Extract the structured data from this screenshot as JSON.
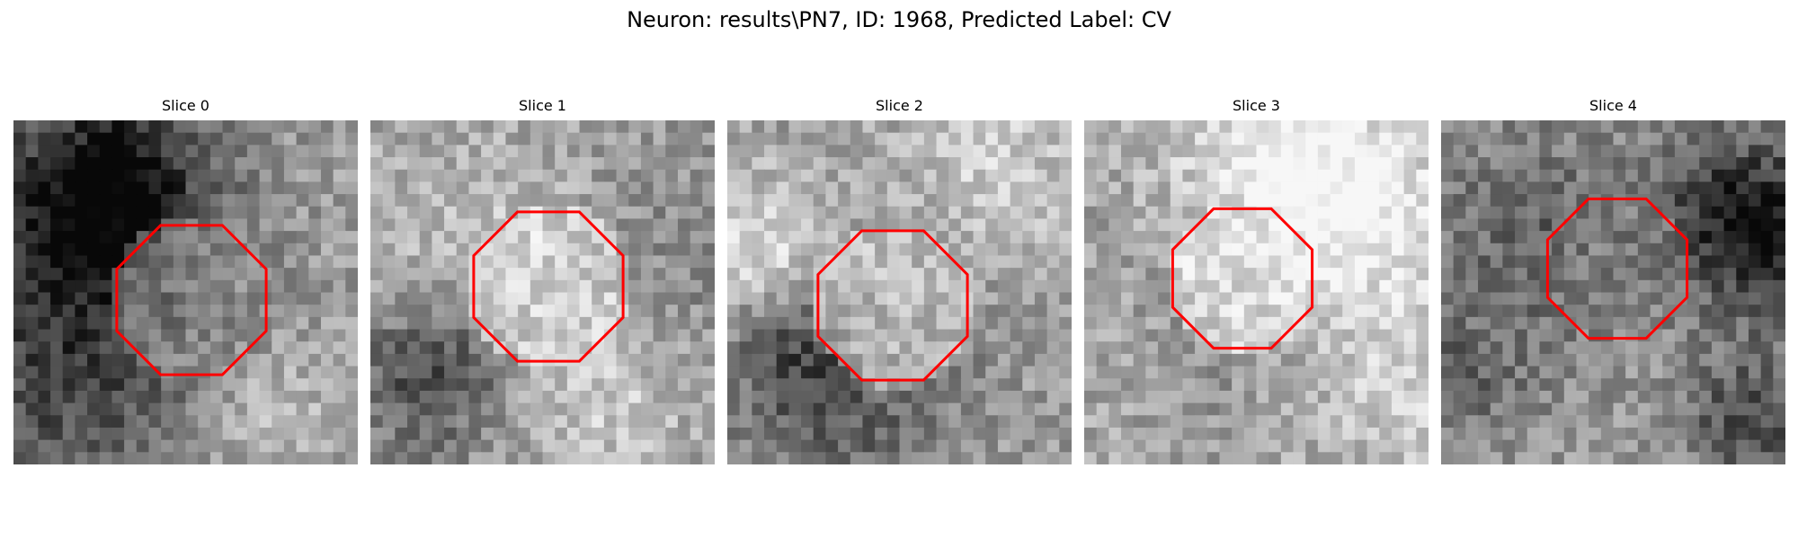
{
  "figure": {
    "title": "Neuron: results\\PN7, ID: 1968, Predicted Label: CV"
  },
  "overlay": {
    "shape": "octagon",
    "color": "#ff0000"
  },
  "slices": [
    {
      "title": "Slice 0"
    },
    {
      "title": "Slice 1"
    },
    {
      "title": "Slice 2"
    },
    {
      "title": "Slice 3"
    },
    {
      "title": "Slice 4"
    }
  ]
}
